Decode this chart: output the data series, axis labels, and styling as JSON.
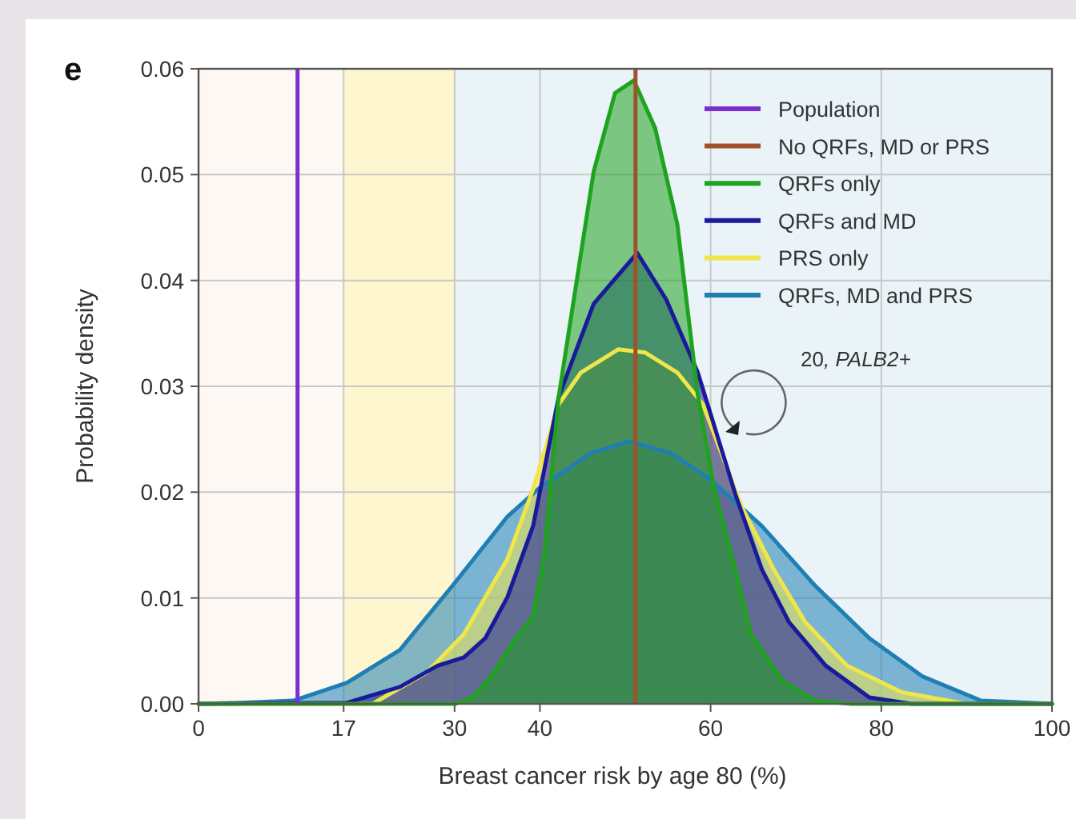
{
  "chart_data": {
    "type": "area",
    "title": "e",
    "xlabel": "Breast cancer risk by age 80 (%)",
    "ylabel": "Probability density",
    "xlim": [
      0,
      100
    ],
    "ylim": [
      0,
      0.06
    ],
    "xticks": [
      0,
      17,
      30,
      40,
      60,
      80,
      100
    ],
    "yticks": [
      {
        "value": 0,
        "label": "0.00"
      },
      {
        "value": 0.01,
        "label": "0.01"
      },
      {
        "value": 0.02,
        "label": "0.02"
      },
      {
        "value": 0.03,
        "label": "0.03"
      },
      {
        "value": 0.04,
        "label": "0.04"
      },
      {
        "value": 0.05,
        "label": "0.05"
      },
      {
        "value": 0.06,
        "label": "0.06"
      }
    ],
    "grid": true,
    "legend": "top right",
    "bands": [
      {
        "axis": "x",
        "from": 0,
        "to": 17,
        "color": "#fdf8f3"
      },
      {
        "axis": "x",
        "from": 17,
        "to": 30,
        "color": "#fdf6cf"
      },
      {
        "axis": "x",
        "from": 30,
        "to": 100,
        "color": "#eaf4f8"
      }
    ],
    "series": [
      {
        "name": "Population",
        "type": "line",
        "color": "#7b2fd0",
        "x": [
          11.6,
          11.6
        ],
        "values": [
          0,
          0.06
        ]
      },
      {
        "name": "No QRFs, MD or PRS",
        "type": "line",
        "color": "#a0522d",
        "x": [
          51.2,
          51.2
        ],
        "values": [
          0,
          0.06
        ]
      },
      {
        "name": "QRFs only",
        "color": "#1fa31f",
        "x": [
          0,
          30,
          32,
          34.3,
          37,
          39.2,
          40.5,
          42.2,
          46.3,
          48.8,
          51,
          53.5,
          56.1,
          58.5,
          60.4,
          62.9,
          64.7,
          68.5,
          72.2,
          76.5,
          100
        ],
        "values": [
          0,
          0,
          0.0005,
          0.0026,
          0.006,
          0.0082,
          0.014,
          0.029,
          0.0503,
          0.0577,
          0.0589,
          0.0544,
          0.0453,
          0.0292,
          0.0203,
          0.0127,
          0.0066,
          0.0021,
          0.0003,
          0,
          0
        ]
      },
      {
        "name": "QRFs and MD",
        "color": "#1a1a9c",
        "x": [
          0,
          17.4,
          23.6,
          28,
          31.1,
          33.6,
          36.2,
          39.2,
          42.2,
          46.3,
          51.4,
          54.8,
          58.5,
          62.9,
          66,
          69.2,
          73.5,
          78.6,
          83.5,
          100
        ],
        "values": [
          0,
          0.0001,
          0.0016,
          0.0036,
          0.0044,
          0.0062,
          0.0101,
          0.0168,
          0.029,
          0.0378,
          0.0426,
          0.0382,
          0.0313,
          0.0198,
          0.0127,
          0.0077,
          0.0036,
          0.0006,
          0,
          0
        ]
      },
      {
        "name": "PRS only",
        "color": "#f0e64a",
        "x": [
          0,
          20.4,
          26.8,
          31.1,
          36.2,
          39.2,
          42.2,
          44.8,
          49.2,
          52.3,
          56.1,
          59.1,
          63.6,
          67.4,
          71.1,
          76,
          82.4,
          89.9,
          100
        ],
        "values": [
          0,
          0,
          0.003,
          0.0066,
          0.0137,
          0.0203,
          0.0283,
          0.0313,
          0.0335,
          0.0332,
          0.0313,
          0.0283,
          0.0187,
          0.0127,
          0.0077,
          0.0036,
          0.0011,
          0,
          0
        ]
      },
      {
        "name": "QRFs, MD and PRS",
        "color": "#1f7fb4",
        "x": [
          0,
          4.9,
          11.1,
          17.4,
          23.6,
          29.8,
          36.2,
          39.8,
          46,
          50.5,
          55.3,
          59.8,
          66,
          72.2,
          78.6,
          84.8,
          91.7,
          100
        ],
        "values": [
          0,
          0.0001,
          0.0003,
          0.002,
          0.0051,
          0.0112,
          0.0177,
          0.0203,
          0.0237,
          0.0248,
          0.0237,
          0.0213,
          0.0168,
          0.0112,
          0.0062,
          0.0026,
          0.0003,
          0
        ]
      }
    ],
    "annotations": [
      "20, PALB2+"
    ]
  }
}
